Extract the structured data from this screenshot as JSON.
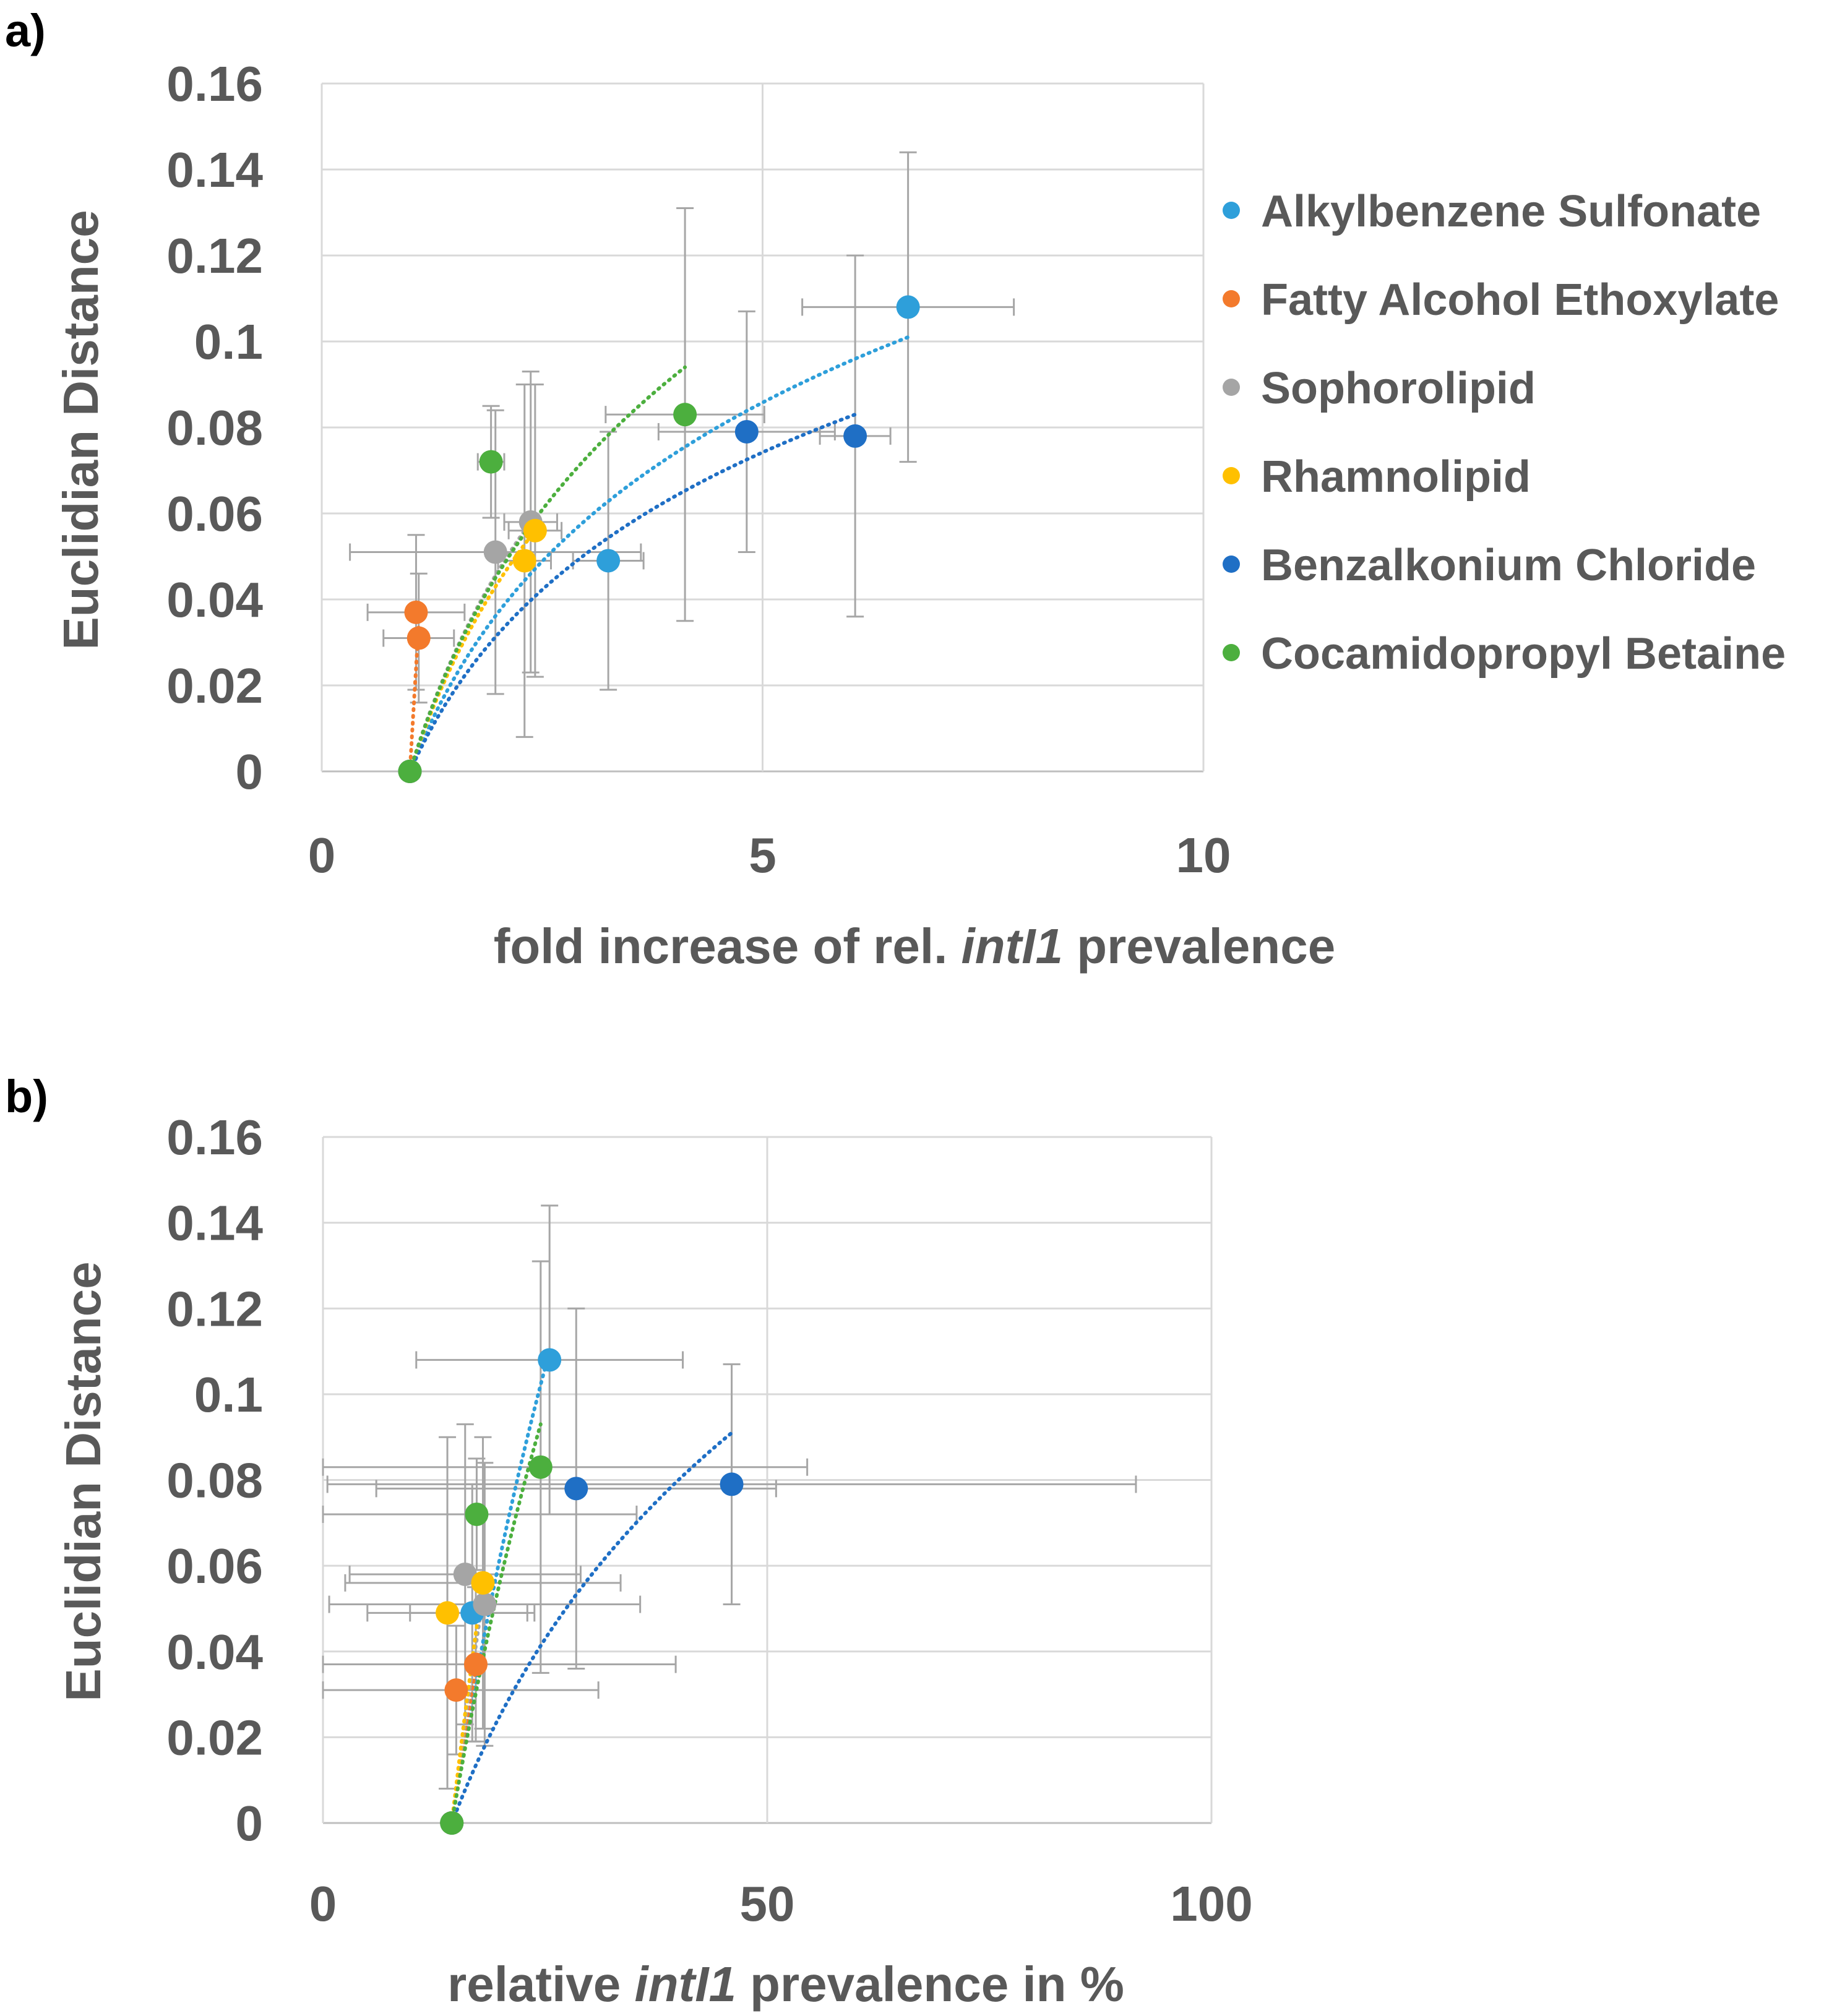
{
  "chart_data": [
    {
      "panel": "a)",
      "type": "scatter",
      "xlabel_parts": [
        "fold increase of rel. ",
        "intI1",
        " prevalence"
      ],
      "ylabel": "Euclidian Distance",
      "xlim": [
        0,
        10
      ],
      "ylim": [
        0,
        0.16
      ],
      "xticks": [
        "0",
        "5",
        "10"
      ],
      "yticks": [
        "0",
        "0.02",
        "0.04",
        "0.06",
        "0.08",
        "0.1",
        "0.12",
        "0.14",
        "0.16"
      ],
      "grid": true,
      "legend": "right",
      "series": [
        {
          "name": "Alkylbenzene Sulfonate",
          "color": "#2E9FDA",
          "points": [
            {
              "x": 1.0,
              "y": 0.0
            },
            {
              "x": 3.25,
              "y": 0.049,
              "xerr": 0.4,
              "yerr": 0.03
            },
            {
              "x": 6.65,
              "y": 0.108,
              "xerr": 1.2,
              "yerr": 0.036
            }
          ],
          "trend": {
            "x0": 1.0,
            "x1": 6.65,
            "y1": 0.101
          }
        },
        {
          "name": "Fatty Alcohol Ethoxylate",
          "color": "#F37A2C",
          "points": [
            {
              "x": 1.0,
              "y": 0.0
            },
            {
              "x": 1.07,
              "y": 0.037,
              "xerr": 0.55,
              "yerr": 0.018
            },
            {
              "x": 1.1,
              "y": 0.031,
              "xerr": 0.4,
              "yerr": 0.015
            }
          ],
          "trend": {
            "x0": 1.0,
            "x1": 1.1,
            "y1": 0.034
          }
        },
        {
          "name": "Sophorolipid",
          "color": "#A5A5A5",
          "points": [
            {
              "x": 1.0,
              "y": 0.0
            },
            {
              "x": 1.97,
              "y": 0.051,
              "xerr": 1.65,
              "yerr": 0.033
            },
            {
              "x": 2.37,
              "y": 0.058,
              "xerr": 0.3,
              "yerr": 0.035
            }
          ],
          "trend": {
            "x0": 1.0,
            "x1": 2.37,
            "y1": 0.058
          }
        },
        {
          "name": "Rhamnolipid",
          "color": "#FFC000",
          "points": [
            {
              "x": 1.0,
              "y": 0.0
            },
            {
              "x": 2.3,
              "y": 0.049,
              "xerr": 0.3,
              "yerr": 0.041
            },
            {
              "x": 2.42,
              "y": 0.056,
              "xerr": 0.3,
              "yerr": 0.034
            }
          ],
          "trend": {
            "x0": 1.0,
            "x1": 2.42,
            "y1": 0.056
          }
        },
        {
          "name": "Benzalkonium Chloride",
          "color": "#1F6FC5",
          "points": [
            {
              "x": 1.0,
              "y": 0.0
            },
            {
              "x": 4.82,
              "y": 0.079,
              "xerr": 1.0,
              "yerr": 0.028
            },
            {
              "x": 6.05,
              "y": 0.078,
              "xerr": 0.4,
              "yerr": 0.042
            }
          ],
          "trend": {
            "x0": 1.0,
            "x1": 6.05,
            "y1": 0.083
          }
        },
        {
          "name": "Cocamidopropyl Betaine",
          "color": "#4CAF3E",
          "points": [
            {
              "x": 1.0,
              "y": 0.0
            },
            {
              "x": 1.92,
              "y": 0.072,
              "xerr": 0.15,
              "yerr": 0.013
            },
            {
              "x": 4.12,
              "y": 0.083,
              "xerr": 0.9,
              "yerr": 0.048
            }
          ],
          "trend": {
            "x0": 1.0,
            "x1": 4.12,
            "y1": 0.094
          }
        }
      ]
    },
    {
      "panel": "b)",
      "type": "scatter",
      "xlabel_parts": [
        "relative ",
        "intI1",
        " prevalence in %"
      ],
      "ylabel": "Euclidian Distance",
      "xlim": [
        0,
        100
      ],
      "ylim": [
        0,
        0.16
      ],
      "xticks": [
        "0",
        "50",
        "100"
      ],
      "yticks": [
        "0",
        "0.02",
        "0.04",
        "0.06",
        "0.08",
        "0.1",
        "0.12",
        "0.14",
        "0.16"
      ],
      "grid": true,
      "series": [
        {
          "name": "Alkylbenzene Sulfonate",
          "color": "#2E9FDA",
          "points": [
            {
              "x": 14.5,
              "y": 0.0
            },
            {
              "x": 16.8,
              "y": 0.049,
              "xerr": 7.0,
              "yerr": 0.03
            },
            {
              "x": 25.5,
              "y": 0.108,
              "xerr": 15.0,
              "yerr": 0.036
            }
          ],
          "trend": {
            "x0": 14.5,
            "x1": 25.5,
            "y1": 0.11
          }
        },
        {
          "name": "Fatty Alcohol Ethoxylate",
          "color": "#F37A2C",
          "points": [
            {
              "x": 14.5,
              "y": 0.0
            },
            {
              "x": 17.2,
              "y": 0.037,
              "xerr": 22.5,
              "yerr": 0.018
            },
            {
              "x": 15.0,
              "y": 0.031,
              "xerr": 16.0,
              "yerr": 0.015
            }
          ],
          "trend": {
            "x0": 14.5,
            "x1": 17.2,
            "y1": 0.036
          }
        },
        {
          "name": "Sophorolipid",
          "color": "#A5A5A5",
          "points": [
            {
              "x": 14.5,
              "y": 0.0
            },
            {
              "x": 18.2,
              "y": 0.051,
              "xerr": 17.5,
              "yerr": 0.033
            },
            {
              "x": 16.0,
              "y": 0.058,
              "xerr": 13.0,
              "yerr": 0.035
            }
          ],
          "trend": {
            "x0": 14.5,
            "x1": 18.2,
            "y1": 0.055
          }
        },
        {
          "name": "Rhamnolipid",
          "color": "#FFC000",
          "points": [
            {
              "x": 14.5,
              "y": 0.0
            },
            {
              "x": 14.0,
              "y": 0.049,
              "xerr": 9.0,
              "yerr": 0.041
            },
            {
              "x": 18.0,
              "y": 0.056,
              "xerr": 15.5,
              "yerr": 0.034
            }
          ],
          "trend": {
            "x0": 14.5,
            "x1": 18.0,
            "y1": 0.056
          }
        },
        {
          "name": "Benzalkonium Chloride",
          "color": "#1F6FC5",
          "points": [
            {
              "x": 14.5,
              "y": 0.0
            },
            {
              "x": 28.5,
              "y": 0.078,
              "xerr": 22.5,
              "yerr": 0.042
            },
            {
              "x": 46.0,
              "y": 0.079,
              "xerr": 45.5,
              "yerr": 0.028
            }
          ],
          "trend": {
            "x0": 14.5,
            "x1": 46.0,
            "y1": 0.091
          }
        },
        {
          "name": "Cocamidopropyl Betaine",
          "color": "#4CAF3E",
          "points": [
            {
              "x": 14.5,
              "y": 0.0
            },
            {
              "x": 17.3,
              "y": 0.072,
              "xerr": 18.0,
              "yerr": 0.013
            },
            {
              "x": 24.5,
              "y": 0.083,
              "xerr": 30.0,
              "yerr": 0.048
            }
          ],
          "trend": {
            "x0": 14.5,
            "x1": 24.5,
            "y1": 0.093
          }
        }
      ]
    }
  ]
}
